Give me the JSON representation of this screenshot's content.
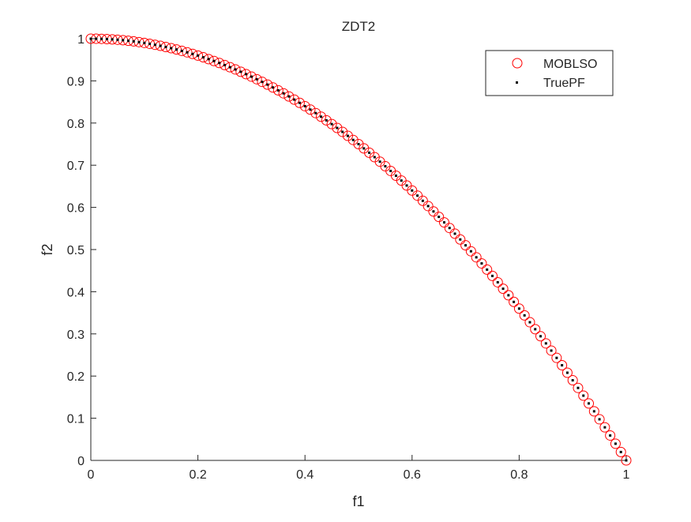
{
  "chart_data": {
    "type": "scatter",
    "title": "ZDT2",
    "xlabel": "f1",
    "ylabel": "f2",
    "xlim": [
      0,
      1
    ],
    "ylim": [
      0,
      1
    ],
    "xticks": [
      "0",
      "0.2",
      "0.4",
      "0.6",
      "0.8",
      "1"
    ],
    "yticks": [
      "0",
      "0.1",
      "0.2",
      "0.3",
      "0.4",
      "0.5",
      "0.6",
      "0.7",
      "0.8",
      "0.9",
      "1"
    ],
    "grid": false,
    "legend_placement": "top-right",
    "x": [
      0,
      0.01,
      0.02,
      0.03,
      0.04,
      0.05,
      0.06,
      0.07,
      0.08,
      0.09,
      0.1,
      0.11,
      0.12,
      0.13,
      0.14,
      0.15,
      0.16,
      0.17,
      0.18,
      0.19,
      0.2,
      0.21,
      0.22,
      0.23,
      0.24,
      0.25,
      0.26,
      0.27,
      0.28,
      0.29,
      0.3,
      0.31,
      0.32,
      0.33,
      0.34,
      0.35,
      0.36,
      0.37,
      0.38,
      0.39,
      0.4,
      0.41,
      0.42,
      0.43,
      0.44,
      0.45,
      0.46,
      0.47,
      0.48,
      0.49,
      0.5,
      0.51,
      0.52,
      0.53,
      0.54,
      0.55,
      0.56,
      0.57,
      0.58,
      0.59,
      0.6,
      0.61,
      0.62,
      0.63,
      0.64,
      0.65,
      0.66,
      0.67,
      0.68,
      0.69,
      0.7,
      0.71,
      0.72,
      0.73,
      0.74,
      0.75,
      0.76,
      0.77,
      0.78,
      0.79,
      0.8,
      0.81,
      0.82,
      0.83,
      0.84,
      0.85,
      0.86,
      0.87,
      0.88,
      0.89,
      0.9,
      0.91,
      0.92,
      0.93,
      0.94,
      0.95,
      0.96,
      0.97,
      0.98,
      0.99,
      1
    ],
    "series": [
      {
        "name": "MOBLSO",
        "marker": "circle",
        "color": "#ff0000",
        "y": [
          1,
          0.9999,
          0.9996,
          0.9991,
          0.9984,
          0.9975,
          0.9964,
          0.9951,
          0.9936,
          0.9919,
          0.99,
          0.9879,
          0.9856,
          0.9831,
          0.9804,
          0.9775,
          0.9744,
          0.9711,
          0.9676,
          0.9639,
          0.96,
          0.9559,
          0.9516,
          0.9471,
          0.9424,
          0.9375,
          0.9324,
          0.9271,
          0.9216,
          0.9159,
          0.91,
          0.9039,
          0.8976,
          0.8911,
          0.8844,
          0.8775,
          0.8704,
          0.8631,
          0.8556,
          0.8479,
          0.84,
          0.8319,
          0.8236,
          0.8151,
          0.8064,
          0.7975,
          0.7884,
          0.7791,
          0.7696,
          0.7599,
          0.75,
          0.7399,
          0.7296,
          0.7191,
          0.7084,
          0.6975,
          0.6864,
          0.6751,
          0.6636,
          0.6519,
          0.64,
          0.6279,
          0.6156,
          0.6031,
          0.5904,
          0.5775,
          0.5644,
          0.5511,
          0.5376,
          0.5239,
          0.51,
          0.4959,
          0.4816,
          0.4671,
          0.4524,
          0.4375,
          0.4224,
          0.4071,
          0.3916,
          0.3759,
          0.36,
          0.3439,
          0.3276,
          0.3111,
          0.2944,
          0.2775,
          0.2604,
          0.2431,
          0.2256,
          0.2079,
          0.19,
          0.1719,
          0.1536,
          0.1351,
          0.1164,
          0.0975,
          0.0784,
          0.0591,
          0.0396,
          0.0199,
          0
        ]
      },
      {
        "name": "TruePF",
        "marker": "dot",
        "color": "#000000",
        "y": [
          1,
          0.9999,
          0.9996,
          0.9991,
          0.9984,
          0.9975,
          0.9964,
          0.9951,
          0.9936,
          0.9919,
          0.99,
          0.9879,
          0.9856,
          0.9831,
          0.9804,
          0.9775,
          0.9744,
          0.9711,
          0.9676,
          0.9639,
          0.96,
          0.9559,
          0.9516,
          0.9471,
          0.9424,
          0.9375,
          0.9324,
          0.9271,
          0.9216,
          0.9159,
          0.91,
          0.9039,
          0.8976,
          0.8911,
          0.8844,
          0.8775,
          0.8704,
          0.8631,
          0.8556,
          0.8479,
          0.84,
          0.8319,
          0.8236,
          0.8151,
          0.8064,
          0.7975,
          0.7884,
          0.7791,
          0.7696,
          0.7599,
          0.75,
          0.7399,
          0.7296,
          0.7191,
          0.7084,
          0.6975,
          0.6864,
          0.6751,
          0.6636,
          0.6519,
          0.64,
          0.6279,
          0.6156,
          0.6031,
          0.5904,
          0.5775,
          0.5644,
          0.5511,
          0.5376,
          0.5239,
          0.51,
          0.4959,
          0.4816,
          0.4671,
          0.4524,
          0.4375,
          0.4224,
          0.4071,
          0.3916,
          0.3759,
          0.36,
          0.3439,
          0.3276,
          0.3111,
          0.2944,
          0.2775,
          0.2604,
          0.2431,
          0.2256,
          0.2079,
          0.19,
          0.1719,
          0.1536,
          0.1351,
          0.1164,
          0.0975,
          0.0784,
          0.0591,
          0.0396,
          0.0199,
          0
        ]
      }
    ]
  }
}
